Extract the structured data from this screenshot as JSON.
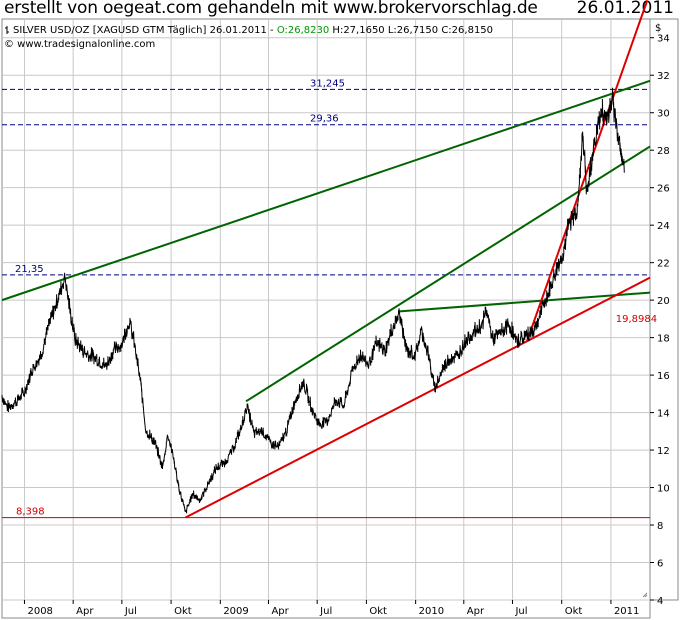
{
  "header": {
    "title": "erstellt von oegeat.com gehandeln mit www.brokervorschlag.de",
    "date": "26.01.2011"
  },
  "info": {
    "symbol": "SILVER USD/OZ [XAGUSD GTM Täglich] 26.01.2011",
    "dash": " - ",
    "ohlc_open": "O:26,8230",
    "ohlc_rest": " H:27,1650 L:26,7150 C:26,8150",
    "source": "© www.tradesignalonline.com"
  },
  "colors": {
    "price": "#000000",
    "trend_green": "#006400",
    "trend_red": "#dd0000",
    "level_blue": "#000080",
    "level_red": "#cc0000",
    "grid": "#c8c8c8",
    "open_green": "#009900"
  },
  "chart_data": {
    "type": "line",
    "title": "SILVER USD/OZ [XAGUSD GTM Täglich]",
    "y_unit": "$",
    "ylim": [
      4,
      35
    ],
    "x_range": [
      "2007-11-20",
      "2011-03-15"
    ],
    "y_ticks": [
      "4",
      "6",
      "8",
      "10",
      "12",
      "14",
      "16",
      "18",
      "20",
      "22",
      "24",
      "26",
      "28",
      "30",
      "32",
      "34"
    ],
    "x_ticks": [
      {
        "date": "2008-01-01",
        "label": "2008"
      },
      {
        "date": "2008-04-01",
        "label": "Apr"
      },
      {
        "date": "2008-07-01",
        "label": "Jul"
      },
      {
        "date": "2008-10-01",
        "label": "Okt"
      },
      {
        "date": "2009-01-01",
        "label": "2009"
      },
      {
        "date": "2009-04-01",
        "label": "Apr"
      },
      {
        "date": "2009-07-01",
        "label": "Jul"
      },
      {
        "date": "2009-10-01",
        "label": "Okt"
      },
      {
        "date": "2010-01-01",
        "label": "2010"
      },
      {
        "date": "2010-04-01",
        "label": "Apr"
      },
      {
        "date": "2010-07-01",
        "label": "Jul"
      },
      {
        "date": "2010-10-01",
        "label": "Okt"
      },
      {
        "date": "2011-01-01",
        "label": "2011"
      }
    ],
    "grid": true,
    "series": [
      {
        "name": "SILVER USD/OZ",
        "points": [
          [
            "2007-11-20",
            14.8
          ],
          [
            "2007-12-01",
            14.2
          ],
          [
            "2007-12-15",
            14.5
          ],
          [
            "2008-01-01",
            15.0
          ],
          [
            "2008-01-15",
            16.2
          ],
          [
            "2008-02-01",
            17.0
          ],
          [
            "2008-02-15",
            18.5
          ],
          [
            "2008-03-01",
            19.8
          ],
          [
            "2008-03-17",
            21.2
          ],
          [
            "2008-03-25",
            19.5
          ],
          [
            "2008-04-05",
            17.8
          ],
          [
            "2008-04-20",
            17.2
          ],
          [
            "2008-05-01",
            17.0
          ],
          [
            "2008-05-15",
            16.8
          ],
          [
            "2008-06-01",
            16.4
          ],
          [
            "2008-06-15",
            17.2
          ],
          [
            "2008-07-01",
            17.6
          ],
          [
            "2008-07-15",
            18.8
          ],
          [
            "2008-07-25",
            17.5
          ],
          [
            "2008-08-05",
            15.5
          ],
          [
            "2008-08-15",
            13.0
          ],
          [
            "2008-09-01",
            12.3
          ],
          [
            "2008-09-15",
            11.0
          ],
          [
            "2008-09-25",
            12.8
          ],
          [
            "2008-10-05",
            11.6
          ],
          [
            "2008-10-15",
            10.0
          ],
          [
            "2008-10-28",
            8.6
          ],
          [
            "2008-11-10",
            9.6
          ],
          [
            "2008-11-25",
            9.3
          ],
          [
            "2008-12-10",
            10.2
          ],
          [
            "2008-12-25",
            11.0
          ],
          [
            "2009-01-10",
            11.3
          ],
          [
            "2009-01-25",
            12.0
          ],
          [
            "2009-02-10",
            13.2
          ],
          [
            "2009-02-20",
            14.3
          ],
          [
            "2009-03-05",
            12.8
          ],
          [
            "2009-03-20",
            13.0
          ],
          [
            "2009-04-05",
            12.3
          ],
          [
            "2009-04-20",
            12.1
          ],
          [
            "2009-05-05",
            13.0
          ],
          [
            "2009-05-20",
            14.5
          ],
          [
            "2009-06-05",
            15.6
          ],
          [
            "2009-06-20",
            14.2
          ],
          [
            "2009-07-05",
            13.3
          ],
          [
            "2009-07-20",
            13.5
          ],
          [
            "2009-08-05",
            14.6
          ],
          [
            "2009-08-20",
            14.3
          ],
          [
            "2009-09-05",
            16.2
          ],
          [
            "2009-09-20",
            17.0
          ],
          [
            "2009-10-05",
            16.5
          ],
          [
            "2009-10-20",
            17.6
          ],
          [
            "2009-11-05",
            17.2
          ],
          [
            "2009-11-20",
            18.5
          ],
          [
            "2009-12-02",
            19.2
          ],
          [
            "2009-12-15",
            17.2
          ],
          [
            "2010-01-01",
            17.0
          ],
          [
            "2010-01-12",
            18.3
          ],
          [
            "2010-01-25",
            17.0
          ],
          [
            "2010-02-05",
            15.2
          ],
          [
            "2010-02-20",
            16.2
          ],
          [
            "2010-03-05",
            16.8
          ],
          [
            "2010-03-20",
            16.9
          ],
          [
            "2010-04-05",
            17.8
          ],
          [
            "2010-04-20",
            18.2
          ],
          [
            "2010-05-05",
            18.6
          ],
          [
            "2010-05-14",
            19.4
          ],
          [
            "2010-05-25",
            17.8
          ],
          [
            "2010-06-10",
            18.2
          ],
          [
            "2010-06-25",
            18.6
          ],
          [
            "2010-07-08",
            17.7
          ],
          [
            "2010-07-25",
            18.0
          ],
          [
            "2010-08-10",
            18.3
          ],
          [
            "2010-08-25",
            19.4
          ],
          [
            "2010-09-05",
            20.2
          ],
          [
            "2010-09-15",
            21.0
          ],
          [
            "2010-09-25",
            21.8
          ],
          [
            "2010-10-05",
            22.5
          ],
          [
            "2010-10-15",
            24.0
          ],
          [
            "2010-10-28",
            24.5
          ],
          [
            "2010-11-05",
            26.6
          ],
          [
            "2010-11-09",
            29.0
          ],
          [
            "2010-11-17",
            25.5
          ],
          [
            "2010-11-25",
            27.0
          ],
          [
            "2010-12-05",
            29.0
          ],
          [
            "2010-12-15",
            29.8
          ],
          [
            "2010-12-25",
            29.5
          ],
          [
            "2011-01-03",
            30.8
          ],
          [
            "2011-01-10",
            29.3
          ],
          [
            "2011-01-18",
            28.3
          ],
          [
            "2011-01-26",
            26.8
          ]
        ]
      }
    ],
    "trend_lines": [
      {
        "color": "green",
        "points": [
          [
            "2007-11-20",
            20.0
          ],
          [
            "2011-03-15",
            31.7
          ]
        ]
      },
      {
        "color": "green",
        "points": [
          [
            "2009-02-18",
            14.6
          ],
          [
            "2011-03-15",
            28.2
          ]
        ]
      },
      {
        "color": "green",
        "points": [
          [
            "2009-12-02",
            19.4
          ],
          [
            "2011-03-15",
            20.4
          ]
        ]
      },
      {
        "color": "red",
        "points": [
          [
            "2008-10-28",
            8.4
          ],
          [
            "2011-03-15",
            21.2
          ]
        ]
      },
      {
        "color": "red",
        "points": [
          [
            "2010-07-28",
            17.8
          ],
          [
            "2011-03-10",
            36.0
          ]
        ]
      }
    ],
    "horizontal_levels": [
      {
        "value": 31.245,
        "label": "31,245",
        "color": "blue"
      },
      {
        "value": 29.36,
        "label": "29,36",
        "color": "blue"
      },
      {
        "value": 21.35,
        "label": "21,35",
        "color": "blue"
      },
      {
        "value": 8.398,
        "label": "8,398",
        "color": "red"
      }
    ],
    "annotations": [
      {
        "date": "2011-01-25",
        "value": 19.8984,
        "text": "19,8984"
      }
    ]
  }
}
